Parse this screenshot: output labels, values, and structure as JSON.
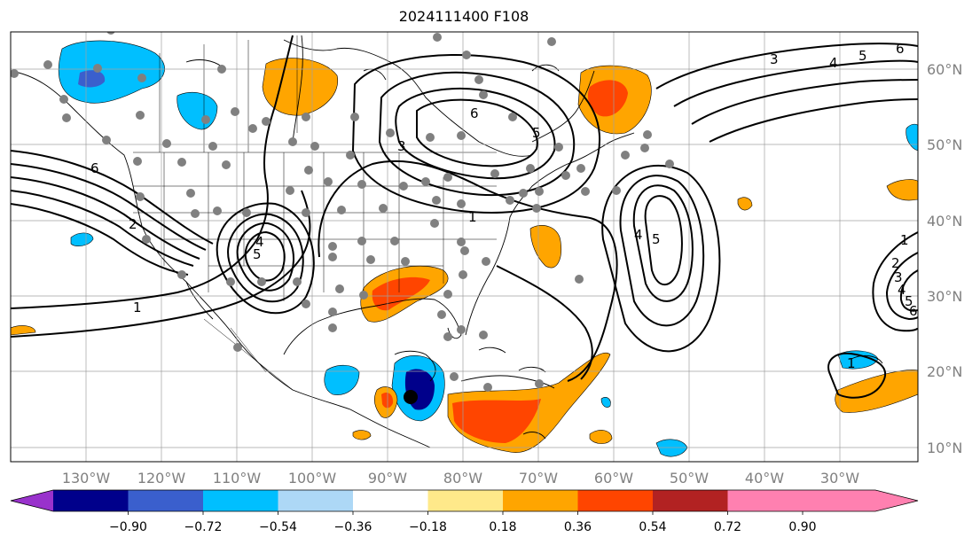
{
  "title": "2024111400 F108",
  "map": {
    "lon_range": [
      -141,
      -20
    ],
    "lat_range": [
      8,
      65
    ],
    "lat_labels": [
      "60°N",
      "50°N",
      "40°N",
      "30°N",
      "20°N",
      "10°N"
    ],
    "lat_values": [
      60,
      50,
      40,
      30,
      20,
      10
    ],
    "lon_labels": [
      "130°W",
      "120°W",
      "110°W",
      "100°W",
      "90°W",
      "80°W",
      "70°W",
      "60°W",
      "50°W",
      "40°W",
      "30°W"
    ],
    "lon_values": [
      -130,
      -120,
      -110,
      -100,
      -90,
      -80,
      -70,
      -60,
      -50,
      -40,
      -30
    ],
    "contour_labels": [
      "6",
      "5",
      "4",
      "3",
      "6",
      "5",
      "6",
      "5",
      "4",
      "3",
      "2",
      "1",
      "4",
      "5",
      "1",
      "2",
      "3",
      "4",
      "5",
      "6",
      "1",
      "1"
    ],
    "land_color": "#ffffff",
    "grid": true
  },
  "colorbar": {
    "ticks": [
      "−0.90",
      "−0.72",
      "−0.54",
      "−0.36",
      "−0.18",
      "0.18",
      "0.36",
      "0.54",
      "0.72",
      "0.90"
    ],
    "colors": [
      "#9932cc",
      "#00008b",
      "#3a5fcd",
      "#00bfff",
      "#add8f6",
      "#ffffff",
      "#ffe98a",
      "#ffa500",
      "#ff4500",
      "#b22222",
      "#ff80b0"
    ]
  }
}
